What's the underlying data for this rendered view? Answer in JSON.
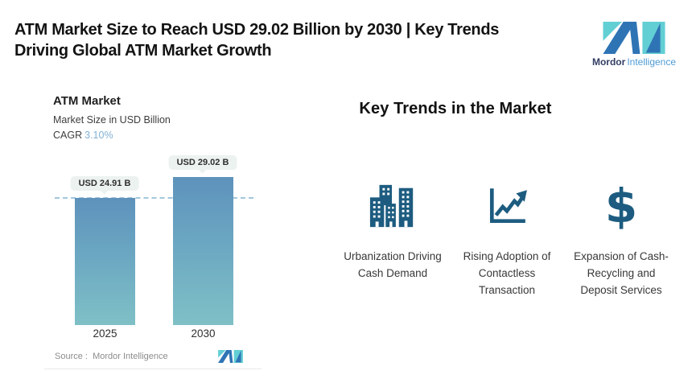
{
  "header": {
    "title_line1": "ATM Market Size to Reach USD 29.02 Billion by 2030 | Key Trends",
    "title_line2": "Driving Global ATM Market Growth"
  },
  "brand": {
    "name": "Mordor Intelligence",
    "wordmark_primary": "Mordor",
    "wordmark_secondary": "Intelligence",
    "colors": {
      "blue": "#2e74b5",
      "teal": "#62cfd4",
      "navy_text": "#323e63",
      "blue_text": "#4e9bd4"
    }
  },
  "chart": {
    "title": "ATM Market",
    "subtitle": "Market Size in USD Billion",
    "cagr_label": "CAGR",
    "cagr_value": "3.10%",
    "source": "Source :  Mordor Intelligence"
  },
  "chart_data": {
    "type": "bar",
    "categories": [
      "2025",
      "2030"
    ],
    "values": [
      24.91,
      29.02
    ],
    "value_labels": [
      "USD 24.91 B",
      "USD 29.02 B"
    ],
    "title": "ATM Market",
    "ylabel": "Market Size in USD Billion",
    "cagr": "3.10%",
    "reference_line_value": 24.91,
    "bar_color_top": "#5e92bc",
    "bar_color_bottom": "#7fc0c6",
    "grid": false,
    "legend": "none"
  },
  "trends": {
    "heading": "Key Trends in the Market",
    "icon_color": "#1d5c80",
    "items": [
      {
        "icon": "city-buildings-icon",
        "label": "Urbanization Driving Cash Demand"
      },
      {
        "icon": "growth-chart-icon",
        "label": "Rising Adoption of Contactless Transaction"
      },
      {
        "icon": "dollar-sign-icon",
        "label": "Expansion of Cash-Recycling and Deposit Services"
      }
    ]
  }
}
